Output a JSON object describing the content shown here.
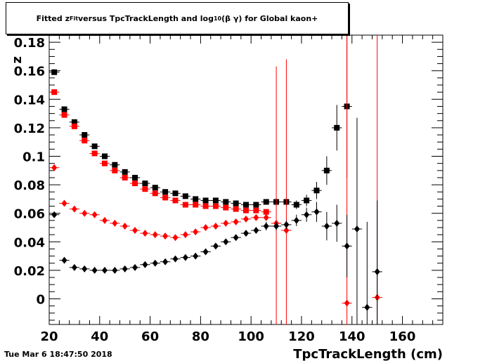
{
  "title": {
    "part1": "Fitted  z",
    "sub1": "Fit",
    "part2": "  versus TpcTrackLength and log",
    "sub2": "10",
    "part3": " (β γ) for Global kaon+"
  },
  "datestamp": "Tue Mar  6 18:47:50 2018",
  "chart_data": {
    "type": "scatter",
    "xlabel": "TpcTrackLength (cm)",
    "ylabel": "z",
    "xlim": [
      20,
      176
    ],
    "ylim": [
      -0.018,
      0.185
    ],
    "xticks": [
      20,
      40,
      60,
      80,
      100,
      120,
      140,
      160
    ],
    "yticks": [
      0,
      0.02,
      0.04,
      0.06,
      0.08,
      0.1,
      0.12,
      0.14,
      0.16,
      0.18
    ],
    "ytick_labels": [
      "0",
      "0.02",
      "0.04",
      "0.06",
      "0.08",
      "0.1",
      "0.12",
      "0.14",
      "0.16",
      "0.18"
    ],
    "series": [
      {
        "marker": "square",
        "color": "#000000",
        "points": [
          {
            "x": 22,
            "y": 0.159
          },
          {
            "x": 26,
            "y": 0.133
          },
          {
            "x": 30,
            "y": 0.124
          },
          {
            "x": 34,
            "y": 0.115
          },
          {
            "x": 38,
            "y": 0.107
          },
          {
            "x": 42,
            "y": 0.1
          },
          {
            "x": 46,
            "y": 0.094
          },
          {
            "x": 50,
            "y": 0.089
          },
          {
            "x": 54,
            "y": 0.085
          },
          {
            "x": 58,
            "y": 0.081
          },
          {
            "x": 62,
            "y": 0.078
          },
          {
            "x": 66,
            "y": 0.075
          },
          {
            "x": 70,
            "y": 0.074
          },
          {
            "x": 74,
            "y": 0.072
          },
          {
            "x": 78,
            "y": 0.07
          },
          {
            "x": 82,
            "y": 0.069
          },
          {
            "x": 86,
            "y": 0.069
          },
          {
            "x": 90,
            "y": 0.068
          },
          {
            "x": 94,
            "y": 0.067
          },
          {
            "x": 98,
            "y": 0.066
          },
          {
            "x": 102,
            "y": 0.066
          },
          {
            "x": 106,
            "y": 0.068
          },
          {
            "x": 110,
            "y": 0.068,
            "err": 0.003
          },
          {
            "x": 114,
            "y": 0.068,
            "err": 0.003
          },
          {
            "x": 118,
            "y": 0.066,
            "err": 0.003
          },
          {
            "x": 122,
            "y": 0.069,
            "err": 0.004
          },
          {
            "x": 126,
            "y": 0.076,
            "err": 0.006
          },
          {
            "x": 130,
            "y": 0.09,
            "err": 0.01
          },
          {
            "x": 134,
            "y": 0.12,
            "err": 0.016
          },
          {
            "x": 138,
            "y": 0.135,
            "err": 0.05
          }
        ]
      },
      {
        "marker": "square",
        "color": "#ff0000",
        "points": [
          {
            "x": 22,
            "y": 0.145
          },
          {
            "x": 26,
            "y": 0.129
          },
          {
            "x": 30,
            "y": 0.121
          },
          {
            "x": 34,
            "y": 0.111
          },
          {
            "x": 38,
            "y": 0.102
          },
          {
            "x": 42,
            "y": 0.095
          },
          {
            "x": 46,
            "y": 0.09
          },
          {
            "x": 50,
            "y": 0.085
          },
          {
            "x": 54,
            "y": 0.081
          },
          {
            "x": 58,
            "y": 0.077
          },
          {
            "x": 62,
            "y": 0.074
          },
          {
            "x": 66,
            "y": 0.071
          },
          {
            "x": 70,
            "y": 0.069
          },
          {
            "x": 74,
            "y": 0.066
          },
          {
            "x": 78,
            "y": 0.066
          },
          {
            "x": 82,
            "y": 0.065
          },
          {
            "x": 86,
            "y": 0.065
          },
          {
            "x": 90,
            "y": 0.064
          },
          {
            "x": 94,
            "y": 0.063
          },
          {
            "x": 98,
            "y": 0.062
          },
          {
            "x": 102,
            "y": 0.062
          },
          {
            "x": 106,
            "y": 0.061
          }
        ]
      },
      {
        "marker": "diamond",
        "color": "#ff0000",
        "points": [
          {
            "x": 22,
            "y": 0.092
          },
          {
            "x": 26,
            "y": 0.067
          },
          {
            "x": 30,
            "y": 0.063
          },
          {
            "x": 34,
            "y": 0.06
          },
          {
            "x": 38,
            "y": 0.059
          },
          {
            "x": 42,
            "y": 0.055
          },
          {
            "x": 46,
            "y": 0.053
          },
          {
            "x": 50,
            "y": 0.051
          },
          {
            "x": 54,
            "y": 0.048
          },
          {
            "x": 58,
            "y": 0.046
          },
          {
            "x": 62,
            "y": 0.045
          },
          {
            "x": 66,
            "y": 0.044
          },
          {
            "x": 70,
            "y": 0.043
          },
          {
            "x": 74,
            "y": 0.045
          },
          {
            "x": 78,
            "y": 0.047
          },
          {
            "x": 82,
            "y": 0.05
          },
          {
            "x": 86,
            "y": 0.051
          },
          {
            "x": 90,
            "y": 0.053
          },
          {
            "x": 94,
            "y": 0.054
          },
          {
            "x": 98,
            "y": 0.056
          },
          {
            "x": 102,
            "y": 0.057
          },
          {
            "x": 106,
            "y": 0.057
          },
          {
            "x": 110,
            "y": 0.053,
            "err": 0.11
          },
          {
            "x": 114,
            "y": 0.048,
            "err": 0.12
          },
          {
            "x": 138,
            "y": -0.003,
            "err": 0.19
          },
          {
            "x": 150,
            "y": 0.001,
            "err": 0.19
          }
        ]
      },
      {
        "marker": "diamond",
        "color": "#000000",
        "points": [
          {
            "x": 22,
            "y": 0.059
          },
          {
            "x": 26,
            "y": 0.027
          },
          {
            "x": 30,
            "y": 0.022
          },
          {
            "x": 34,
            "y": 0.021
          },
          {
            "x": 38,
            "y": 0.02
          },
          {
            "x": 42,
            "y": 0.02
          },
          {
            "x": 46,
            "y": 0.02
          },
          {
            "x": 50,
            "y": 0.021
          },
          {
            "x": 54,
            "y": 0.022
          },
          {
            "x": 58,
            "y": 0.024
          },
          {
            "x": 62,
            "y": 0.025
          },
          {
            "x": 66,
            "y": 0.026
          },
          {
            "x": 70,
            "y": 0.028
          },
          {
            "x": 74,
            "y": 0.029
          },
          {
            "x": 78,
            "y": 0.03
          },
          {
            "x": 82,
            "y": 0.033
          },
          {
            "x": 86,
            "y": 0.037
          },
          {
            "x": 90,
            "y": 0.04
          },
          {
            "x": 94,
            "y": 0.043
          },
          {
            "x": 98,
            "y": 0.046
          },
          {
            "x": 102,
            "y": 0.048
          },
          {
            "x": 106,
            "y": 0.051,
            "err": 0.003
          },
          {
            "x": 110,
            "y": 0.051,
            "err": 0.003
          },
          {
            "x": 114,
            "y": 0.052,
            "err": 0.003
          },
          {
            "x": 118,
            "y": 0.055,
            "err": 0.004
          },
          {
            "x": 122,
            "y": 0.059,
            "err": 0.005
          },
          {
            "x": 126,
            "y": 0.061,
            "err": 0.007
          },
          {
            "x": 130,
            "y": 0.051,
            "err": 0.01
          },
          {
            "x": 134,
            "y": 0.053,
            "err": 0.013
          },
          {
            "x": 138,
            "y": 0.037,
            "err": 0.022
          },
          {
            "x": 142,
            "y": 0.049,
            "err": 0.078
          },
          {
            "x": 146,
            "y": -0.006,
            "err": 0.06
          },
          {
            "x": 150,
            "y": 0.019,
            "err": 0.05
          }
        ]
      }
    ]
  }
}
